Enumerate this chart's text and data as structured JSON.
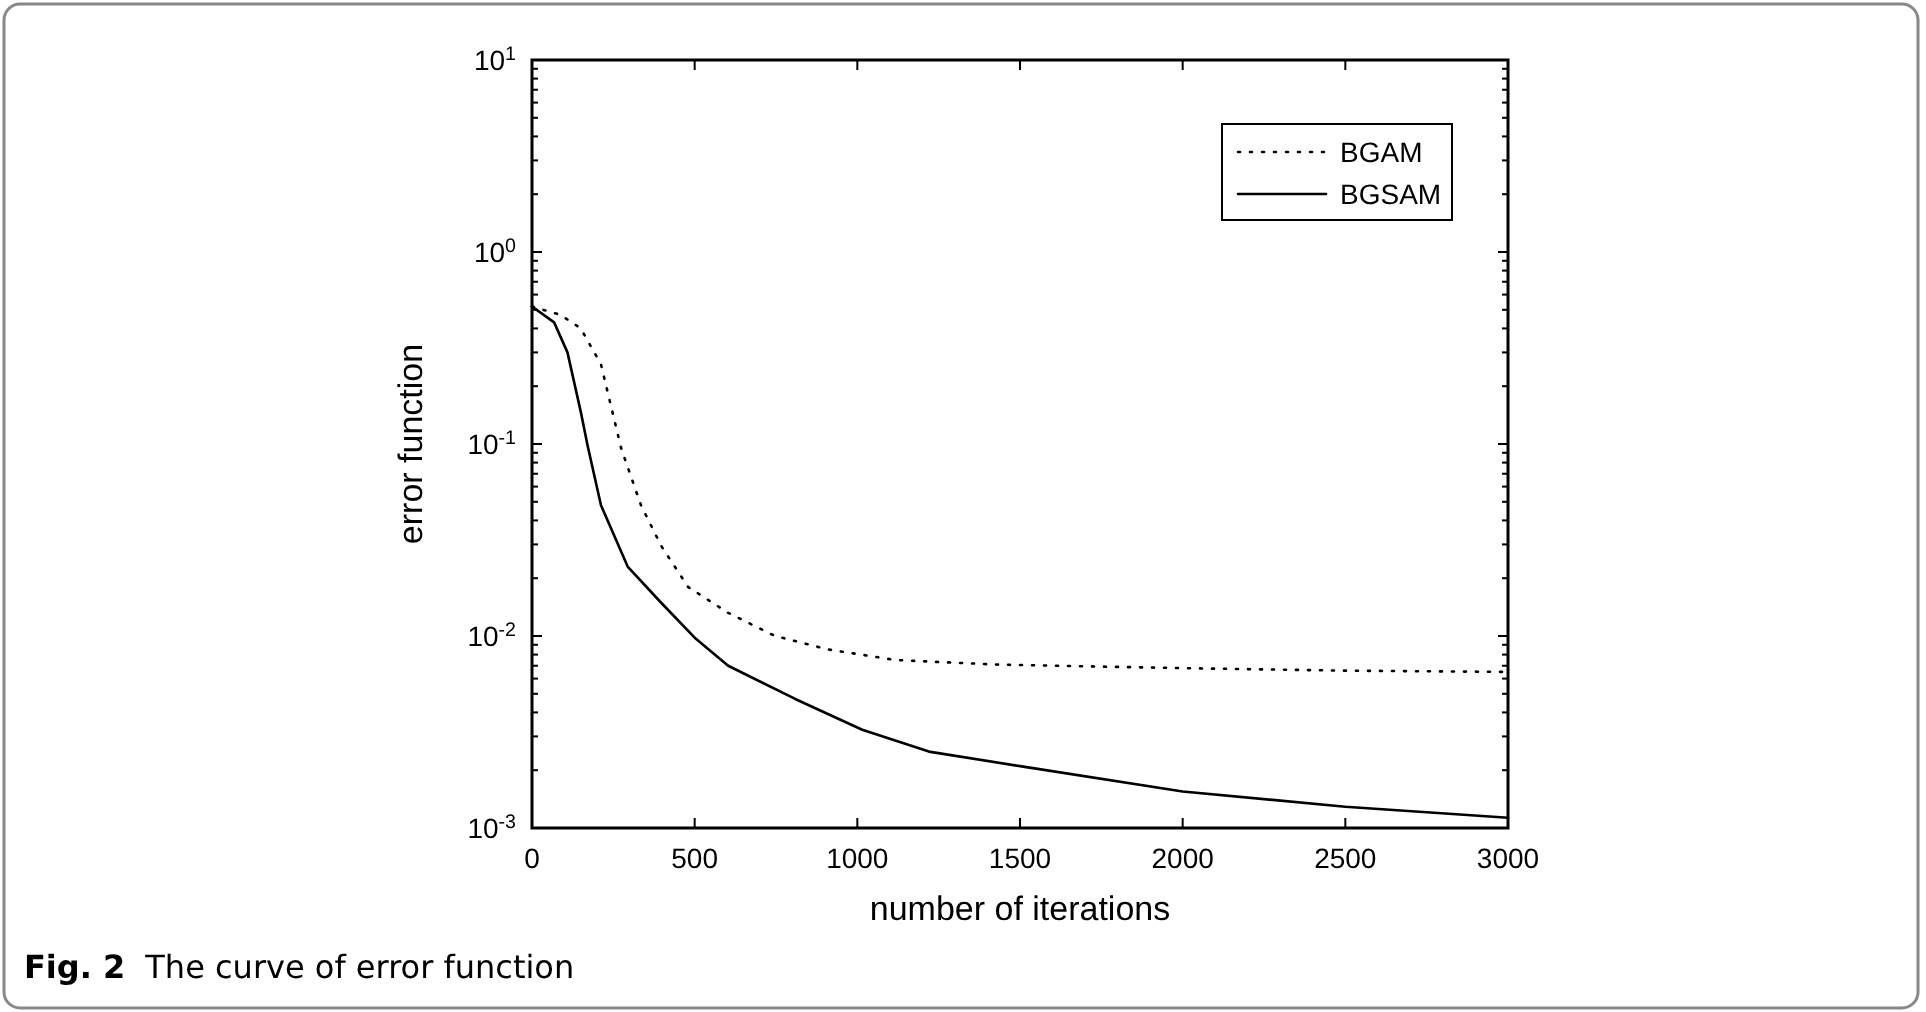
{
  "chart_data": {
    "type": "line",
    "xlabel": "number of iterations",
    "ylabel": "error function",
    "log": "y",
    "xlim": [
      0,
      3000
    ],
    "xticks": [
      0,
      500,
      1000,
      1500,
      2000,
      2500,
      3000
    ],
    "ylim": [
      0.001,
      10
    ],
    "yticks": [
      {
        "value": 0.001,
        "label": "10$^{-3}$"
      },
      {
        "value": 0.002,
        "label": null
      },
      {
        "value": 0.003,
        "label": null
      },
      {
        "value": 0.004,
        "label": null
      },
      {
        "value": 0.005,
        "label": null
      },
      {
        "value": 0.006,
        "label": null
      },
      {
        "value": 0.007,
        "label": null
      },
      {
        "value": 0.008,
        "label": null
      },
      {
        "value": 0.009,
        "label": null
      },
      {
        "value": 0.01,
        "label": "10$^{-2}$"
      },
      {
        "value": 0.02,
        "label": null
      },
      {
        "value": 0.03,
        "label": null
      },
      {
        "value": 0.04,
        "label": null
      },
      {
        "value": 0.05,
        "label": null
      },
      {
        "value": 0.06,
        "label": null
      },
      {
        "value": 0.07,
        "label": null
      },
      {
        "value": 0.08,
        "label": null
      },
      {
        "value": 0.09,
        "label": null
      },
      {
        "value": 0.1,
        "label": "10$^{-1}$"
      },
      {
        "value": 0.2,
        "label": null
      },
      {
        "value": 0.3,
        "label": null
      },
      {
        "value": 0.4,
        "label": null
      },
      {
        "value": 0.5,
        "label": null
      },
      {
        "value": 0.6,
        "label": null
      },
      {
        "value": 0.7,
        "label": null
      },
      {
        "value": 0.8,
        "label": null
      },
      {
        "value": 0.9,
        "label": null
      },
      {
        "value": 1,
        "label": "10$^{0}$"
      },
      {
        "value": 2,
        "label": null
      },
      {
        "value": 3,
        "label": null
      },
      {
        "value": 4,
        "label": null
      },
      {
        "value": 5,
        "label": null
      },
      {
        "value": 6,
        "label": null
      },
      {
        "value": 7,
        "label": null
      },
      {
        "value": 8,
        "label": null
      },
      {
        "value": 9,
        "label": null
      },
      {
        "value": 10,
        "label": "10$^{1}$"
      }
    ],
    "grid": false,
    "legend": "top right",
    "marker": "none",
    "series": [
      {
        "name": "BGAM",
        "color": "#000000",
        "line_style": "dotted",
        "x": [
          0,
          88,
          150,
          212,
          274,
          335,
          397,
          480,
          603,
          747,
          912,
          1117,
          1426,
          2000,
          2500,
          3000
        ],
        "values": [
          0.52,
          0.47,
          0.4,
          0.26,
          0.095,
          0.048,
          0.0295,
          0.018,
          0.0132,
          0.01,
          0.0085,
          0.0075,
          0.0071,
          0.0068,
          0.0066,
          0.0065
        ]
      },
      {
        "name": "BGSAM",
        "color": "#000000",
        "line_style": "solid",
        "x": [
          0,
          68,
          109,
          150,
          171,
          212,
          294,
          397,
          500,
          603,
          809,
          1015,
          1220,
          1500,
          2000,
          2500,
          3000
        ],
        "values": [
          0.52,
          0.43,
          0.3,
          0.147,
          0.098,
          0.048,
          0.023,
          0.0149,
          0.0098,
          0.007,
          0.0047,
          0.00325,
          0.0025,
          0.0021,
          0.00155,
          0.00129,
          0.00113
        ]
      }
    ],
    "annotations": [
      "Fig. 2",
      "The curve of error function"
    ]
  }
}
